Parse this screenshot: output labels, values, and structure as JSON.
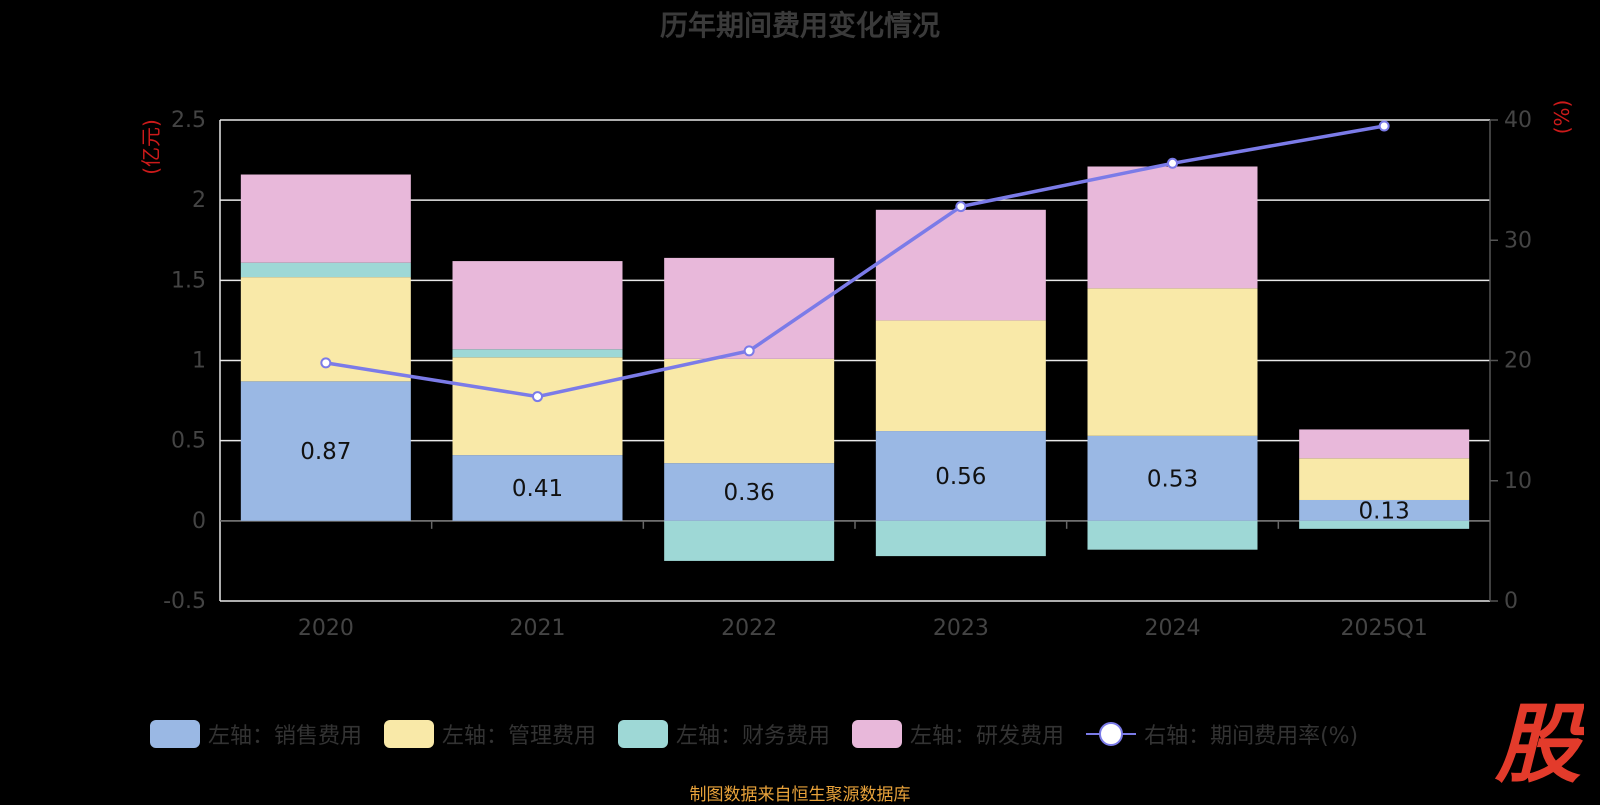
{
  "title": "历年期间费用变化情况",
  "left_unit": "(亿元)",
  "right_unit": "(%)",
  "source": "制图数据来自恒生聚源数据库",
  "logo_text": "股",
  "colors": {
    "sales": "#9ab8e4",
    "admin": "#f9e9a8",
    "finance": "#9ed8d6",
    "rd": "#e8b8da",
    "rate": "#7b7be8",
    "grid": "#e8e8e8",
    "axis_text": "#444444",
    "unit": "#cc1a1a",
    "logo": "#e33b2b"
  },
  "legend": [
    {
      "label": "左轴：销售费用",
      "color_key": "sales",
      "kind": "bar"
    },
    {
      "label": "左轴：管理费用",
      "color_key": "admin",
      "kind": "bar"
    },
    {
      "label": "左轴：财务费用",
      "color_key": "finance",
      "kind": "bar"
    },
    {
      "label": "左轴：研发费用",
      "color_key": "rd",
      "kind": "bar"
    },
    {
      "label": "右轴：期间费用率(%)",
      "color_key": "rate",
      "kind": "line"
    }
  ],
  "chart_data": {
    "type": "bar",
    "stacked": true,
    "categories": [
      "2020",
      "2021",
      "2022",
      "2023",
      "2024",
      "2025Q1"
    ],
    "series": [
      {
        "name": "左轴：销售费用",
        "axis": "left",
        "color_key": "sales",
        "values": [
          0.87,
          0.41,
          0.36,
          0.56,
          0.53,
          0.13
        ],
        "labels": [
          "0.87",
          "0.41",
          "0.36",
          "0.56",
          "0.53",
          "0.13"
        ]
      },
      {
        "name": "左轴：管理费用",
        "axis": "left",
        "color_key": "admin",
        "values": [
          0.65,
          0.61,
          0.65,
          0.69,
          0.92,
          0.26
        ]
      },
      {
        "name": "左轴：财务费用",
        "axis": "left",
        "color_key": "finance",
        "values": [
          0.09,
          0.05,
          -0.25,
          -0.22,
          -0.18,
          -0.05
        ]
      },
      {
        "name": "左轴：研发费用",
        "axis": "left",
        "color_key": "rd",
        "values": [
          0.55,
          0.55,
          0.63,
          0.69,
          0.76,
          0.18
        ]
      },
      {
        "name": "右轴：期间费用率(%)",
        "axis": "right",
        "type": "line",
        "color_key": "rate",
        "values": [
          19.8,
          17.0,
          20.8,
          32.8,
          36.4,
          39.5
        ]
      }
    ],
    "left_axis": {
      "ylim": [
        -0.5,
        2.5
      ],
      "ticks": [
        "-0.5",
        "0",
        "0.5",
        "1",
        "1.5",
        "2",
        "2.5"
      ],
      "label": "(亿元)"
    },
    "right_axis": {
      "ylim": [
        0,
        40
      ],
      "ticks": [
        "0",
        "10",
        "20",
        "30",
        "40"
      ],
      "label": "(%)"
    },
    "grid": true,
    "legend_position": "bottom"
  }
}
